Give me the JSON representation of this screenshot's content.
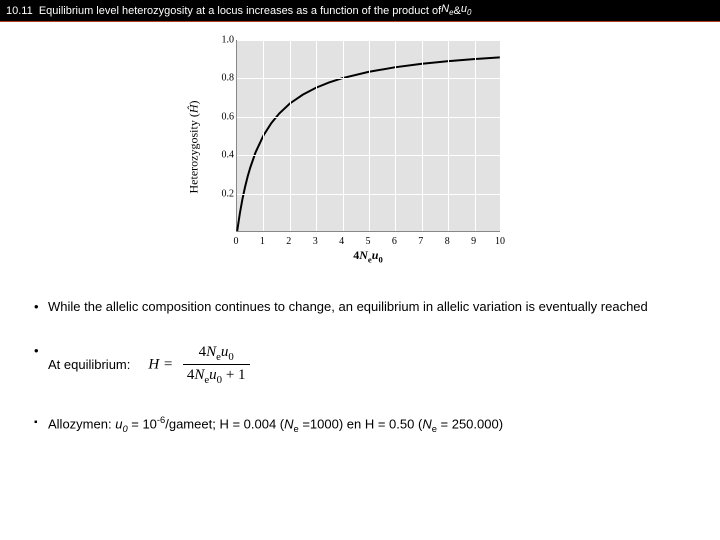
{
  "title": {
    "num": "10.11",
    "text_a": "Equilibrium level heterozygosity at a locus increases as a function of the product of ",
    "ne": "N",
    "ne_sub": "e",
    "amp": " & ",
    "u": "u",
    "u_sub": "0"
  },
  "chart": {
    "type": "line",
    "background_color": "#e2e2e2",
    "grid_color": "#ffffff",
    "axis_color": "#888888",
    "curve_color": "#000000",
    "curve_width": 2,
    "xlim": [
      0,
      10
    ],
    "ylim": [
      0,
      1.0
    ],
    "xticks": [
      0,
      1,
      2,
      3,
      4,
      5,
      6,
      7,
      8,
      9,
      10
    ],
    "yticks": [
      0.2,
      0.4,
      0.6,
      0.8,
      1.0
    ],
    "ylabel_prefix": "Heterozygosity (",
    "ylabel_sym": "Ĥ",
    "ylabel_suffix": ")",
    "xlabel_a": "4",
    "xlabel_n": "N",
    "xlabel_ns": "e",
    "xlabel_u": "u",
    "xlabel_us": "0",
    "points": [
      {
        "x": 0.0,
        "y": 0.0
      },
      {
        "x": 0.1,
        "y": 0.091
      },
      {
        "x": 0.2,
        "y": 0.167
      },
      {
        "x": 0.3,
        "y": 0.231
      },
      {
        "x": 0.4,
        "y": 0.286
      },
      {
        "x": 0.5,
        "y": 0.333
      },
      {
        "x": 0.7,
        "y": 0.412
      },
      {
        "x": 1.0,
        "y": 0.5
      },
      {
        "x": 1.3,
        "y": 0.565
      },
      {
        "x": 1.6,
        "y": 0.615
      },
      {
        "x": 2.0,
        "y": 0.667
      },
      {
        "x": 2.5,
        "y": 0.714
      },
      {
        "x": 3.0,
        "y": 0.75
      },
      {
        "x": 3.5,
        "y": 0.778
      },
      {
        "x": 4.0,
        "y": 0.8
      },
      {
        "x": 5.0,
        "y": 0.833
      },
      {
        "x": 6.0,
        "y": 0.857
      },
      {
        "x": 7.0,
        "y": 0.875
      },
      {
        "x": 8.0,
        "y": 0.889
      },
      {
        "x": 9.0,
        "y": 0.9
      },
      {
        "x": 10.0,
        "y": 0.909
      }
    ]
  },
  "bullets": {
    "b1": "While the allelic composition continues to change, an equilibrium in allelic variation is eventually reached",
    "b2": "At equilibrium:",
    "eq": {
      "lhs": "H =",
      "num_a": "4",
      "num_n": "N",
      "num_ns": "e",
      "num_u": "u",
      "num_us": "0",
      "den_a": "4",
      "den_n": "N",
      "den_ns": "e",
      "den_u": "u",
      "den_us": "0",
      "den_plus": " + 1"
    },
    "b3_a": "Allozymen: ",
    "b3_u": "u",
    "b3_us": "0",
    "b3_b": " = 10",
    "b3_exp": "-6",
    "b3_c": "/gameet; ",
    "b3_d": "H = 0.004 (",
    "b3_n1": "N",
    "b3_n1s": "e",
    "b3_e": " =1000) en H = 0.50 (",
    "b3_n2": "N",
    "b3_n2s": "e",
    "b3_f": " = 250.000)"
  }
}
